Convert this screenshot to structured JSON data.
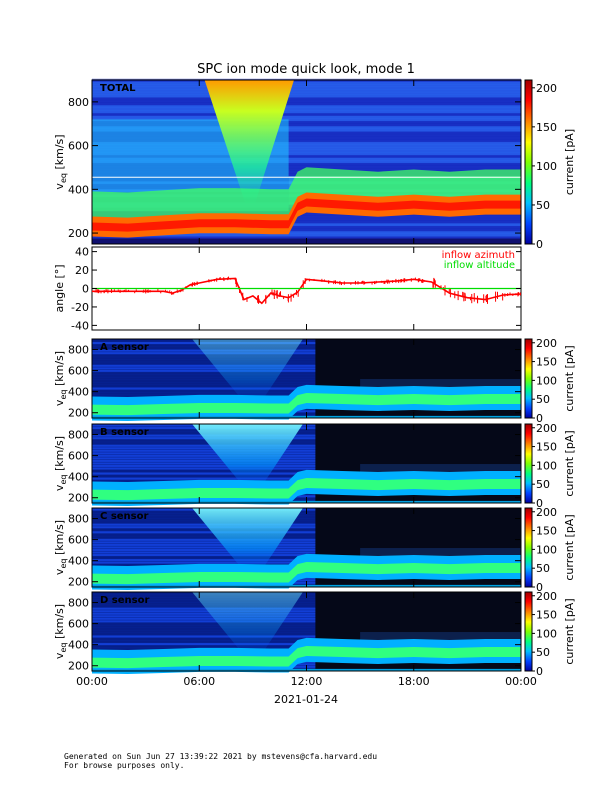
{
  "title": "SPC ion mode quick look, mode 1",
  "footer": {
    "line1": "Generated on Sun Jun 27 13:39:22 2021 by mstevens@cfa.harvard.edu",
    "line2": "For browse purposes only."
  },
  "x_axis": {
    "tick_labels": [
      "00:00",
      "06:00",
      "12:00",
      "18:00",
      "00:00"
    ],
    "tick_hours": [
      0,
      6,
      12,
      18,
      24
    ],
    "date_label": "2021-01-24",
    "range_hours": [
      0,
      24
    ]
  },
  "colors": {
    "azimuth": "#ff0000",
    "altitude": "#00dd00",
    "total_bg": "#1e3ad8",
    "sensor_bg": "#000000"
  },
  "chart_data": [
    {
      "type": "heatmap",
      "panel": "TOTAL",
      "label": "TOTAL",
      "ylabel": "v_eq [km/s]",
      "ylabel_main": "v",
      "ylabel_sub": "eq",
      "ylabel_unit": "[km/s]",
      "ylim": [
        150,
        900
      ],
      "y_ticks": [
        200,
        400,
        600,
        800
      ],
      "colorbar": {
        "label": "current [pA]",
        "range": [
          0,
          210
        ],
        "ticks": [
          0,
          50,
          100,
          150,
          200
        ]
      },
      "core_velocity_km_s": {
        "hours": [
          0,
          2,
          4,
          6,
          8,
          10,
          11,
          11.5,
          12,
          14,
          16,
          18,
          20,
          22,
          24
        ],
        "values": [
          230,
          225,
          235,
          245,
          245,
          240,
          240,
          320,
          340,
          330,
          320,
          330,
          320,
          330,
          330
        ]
      }
    },
    {
      "type": "line",
      "panel": "angle",
      "ylabel": "angle [°]",
      "ylim": [
        -45,
        45
      ],
      "y_ticks": [
        -40,
        -20,
        0,
        20,
        40
      ],
      "legend_position": "top-right",
      "series": [
        {
          "name": "inflow azimuth",
          "hours": [
            0,
            2,
            4,
            4.5,
            5,
            5.5,
            6,
            7,
            8,
            8.5,
            9,
            9.5,
            10,
            10.5,
            11,
            11.5,
            12,
            13,
            14,
            15,
            16,
            17,
            18,
            19,
            20,
            21,
            22,
            23,
            24
          ],
          "values": [
            -3,
            -3,
            -3,
            -5,
            -2,
            4,
            6,
            10,
            11,
            -12,
            -8,
            -16,
            -5,
            -8,
            -10,
            -4,
            10,
            8,
            6,
            6,
            7,
            8,
            10,
            7,
            -5,
            -10,
            -12,
            -7,
            -6
          ]
        },
        {
          "name": "inflow altitude",
          "hours": [
            0,
            24
          ],
          "values": [
            0,
            0
          ]
        }
      ]
    },
    {
      "type": "heatmap",
      "panel": "A",
      "label": "A sensor",
      "ylabel": "v_eq [km/s]",
      "ylabel_main": "v",
      "ylabel_sub": "eq",
      "ylabel_unit": "[km/s]",
      "ylim": [
        150,
        900
      ],
      "y_ticks": [
        200,
        400,
        600,
        800
      ],
      "colorbar": {
        "label": "current [pA]",
        "range": [
          0,
          210
        ],
        "ticks": [
          0,
          50,
          100,
          150,
          200
        ]
      }
    },
    {
      "type": "heatmap",
      "panel": "B",
      "label": "B sensor",
      "ylabel": "v_eq [km/s]",
      "ylabel_main": "v",
      "ylabel_sub": "eq",
      "ylabel_unit": "[km/s]",
      "ylim": [
        150,
        900
      ],
      "y_ticks": [
        200,
        400,
        600,
        800
      ],
      "colorbar": {
        "label": "current [pA]",
        "range": [
          0,
          210
        ],
        "ticks": [
          0,
          50,
          100,
          150,
          200
        ]
      }
    },
    {
      "type": "heatmap",
      "panel": "C",
      "label": "C sensor",
      "ylabel": "v_eq [km/s]",
      "ylabel_main": "v",
      "ylabel_sub": "eq",
      "ylabel_unit": "[km/s]",
      "ylim": [
        150,
        900
      ],
      "y_ticks": [
        200,
        400,
        600,
        800
      ],
      "colorbar": {
        "label": "current [pA]",
        "range": [
          0,
          210
        ],
        "ticks": [
          0,
          50,
          100,
          150,
          200
        ]
      }
    },
    {
      "type": "heatmap",
      "panel": "D",
      "label": "D sensor",
      "ylabel": "v_eq [km/s]",
      "ylabel_main": "v",
      "ylabel_sub": "eq",
      "ylabel_unit": "[km/s]",
      "ylim": [
        150,
        900
      ],
      "y_ticks": [
        200,
        400,
        600,
        800
      ],
      "colorbar": {
        "label": "current [pA]",
        "range": [
          0,
          210
        ],
        "ticks": [
          0,
          50,
          100,
          150,
          200
        ]
      }
    }
  ]
}
